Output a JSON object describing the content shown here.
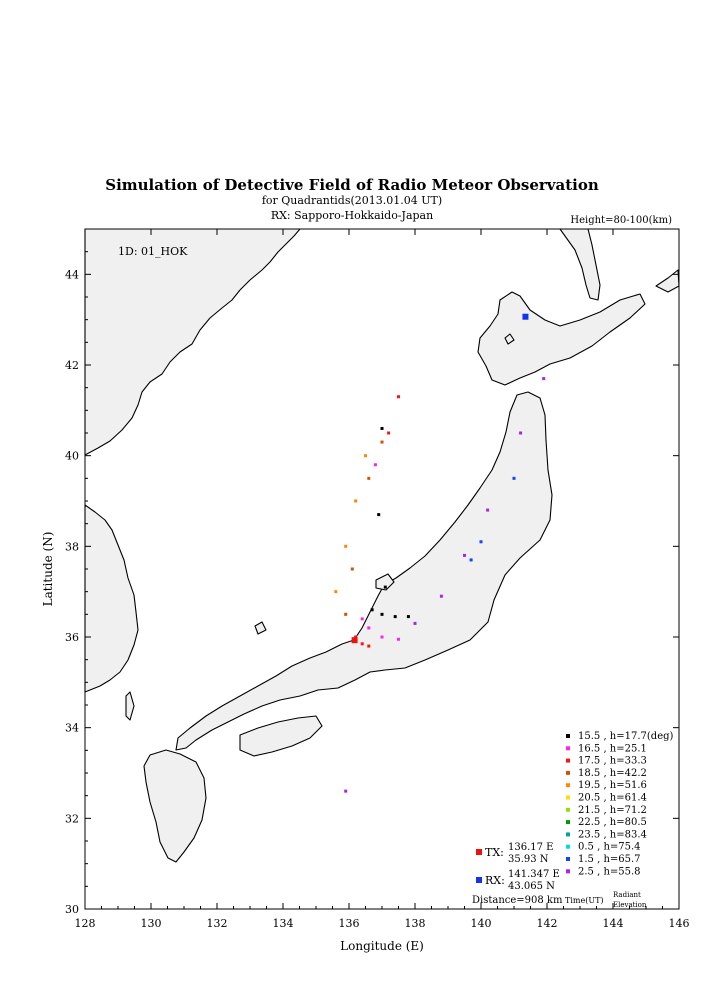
{
  "title": "Simulation of Detective Field of Radio Meteor Observation",
  "subtitle1": "for Quadrantids(2013.01.04 UT)",
  "subtitle2": "RX: Sapporo-Hokkaido-Japan",
  "height_label": "Height=80-100(km)",
  "id_label": "1D: 01_HOK",
  "tx": {
    "label": "TX:",
    "lon": "136.17 E",
    "lat": "35.93 N",
    "color": "#ee1111"
  },
  "rx": {
    "label": "RX:",
    "lon": "141.347 E",
    "lat": "43.065 N",
    "color": "#1133ee"
  },
  "distance": "Distance=908 km",
  "legend_footer": {
    "time": "Time(UT)",
    "radiant1": "Radiant",
    "radiant2": "Elevation"
  },
  "chart_data": {
    "type": "scatter",
    "xlabel": "Longitude (E)",
    "ylabel": "Latitude (N)",
    "xlim": [
      128,
      146
    ],
    "ylim": [
      30,
      45
    ],
    "xticks": [
      "128",
      "130",
      "132",
      "134",
      "136",
      "138",
      "140",
      "142",
      "144",
      "146"
    ],
    "yticks": [
      "30",
      "32",
      "34",
      "36",
      "38",
      "40",
      "42",
      "44"
    ],
    "series": [
      {
        "name": "15.5 ,  h=17.7(deg)",
        "color": "#000000",
        "lon": [
          136.7,
          137.0,
          137.4,
          137.8,
          137.1,
          136.9,
          137.0
        ],
        "lat": [
          36.6,
          36.5,
          36.45,
          36.45,
          37.1,
          38.7,
          40.6
        ]
      },
      {
        "name": "16.5 ,  h=25.1",
        "color": "#ff22ee",
        "lon": [
          136.4,
          136.6,
          137.0,
          137.5,
          136.8
        ],
        "lat": [
          36.4,
          36.2,
          36.0,
          35.95,
          39.8
        ]
      },
      {
        "name": "17.5 ,  h=33.3",
        "color": "#ff1111",
        "lon": [
          136.2,
          136.4,
          136.6,
          137.2,
          137.5
        ],
        "lat": [
          36.0,
          35.85,
          35.8,
          40.5,
          41.3
        ]
      },
      {
        "name": "18.5 ,  h=42.2",
        "color": "#cc5500",
        "lon": [
          135.9,
          136.1,
          136.6,
          137.0
        ],
        "lat": [
          36.5,
          37.5,
          39.5,
          40.3
        ]
      },
      {
        "name": "19.5 ,  h=51.6",
        "color": "#ff8800",
        "lon": [
          135.6,
          135.9,
          136.2,
          136.5
        ],
        "lat": [
          37.0,
          38.0,
          39.0,
          40.0
        ]
      },
      {
        "name": "20.5 ,  h=61.4",
        "color": "#ffdd00",
        "lon": [],
        "lat": []
      },
      {
        "name": "21.5 ,  h=71.2",
        "color": "#99dd00",
        "lon": [],
        "lat": []
      },
      {
        "name": "22.5 ,  h=80.5",
        "color": "#009900",
        "lon": [],
        "lat": []
      },
      {
        "name": "23.5 ,  h=83.4",
        "color": "#00aa99",
        "lon": [],
        "lat": []
      },
      {
        "name": "0.5 ,  h=75.4",
        "color": "#00dddd",
        "lon": [],
        "lat": []
      },
      {
        "name": "1.5 ,  h=65.7",
        "color": "#1144ff",
        "lon": [
          139.7,
          140.0,
          141.0
        ],
        "lat": [
          37.7,
          38.1,
          39.5
        ]
      },
      {
        "name": "2.5 ,  h=55.8",
        "color": "#aa22ee",
        "lon": [
          138.0,
          138.8,
          139.5,
          140.2,
          141.2,
          141.9,
          135.9
        ],
        "lat": [
          36.3,
          36.9,
          37.8,
          38.8,
          40.5,
          41.7,
          32.6
        ]
      }
    ]
  }
}
